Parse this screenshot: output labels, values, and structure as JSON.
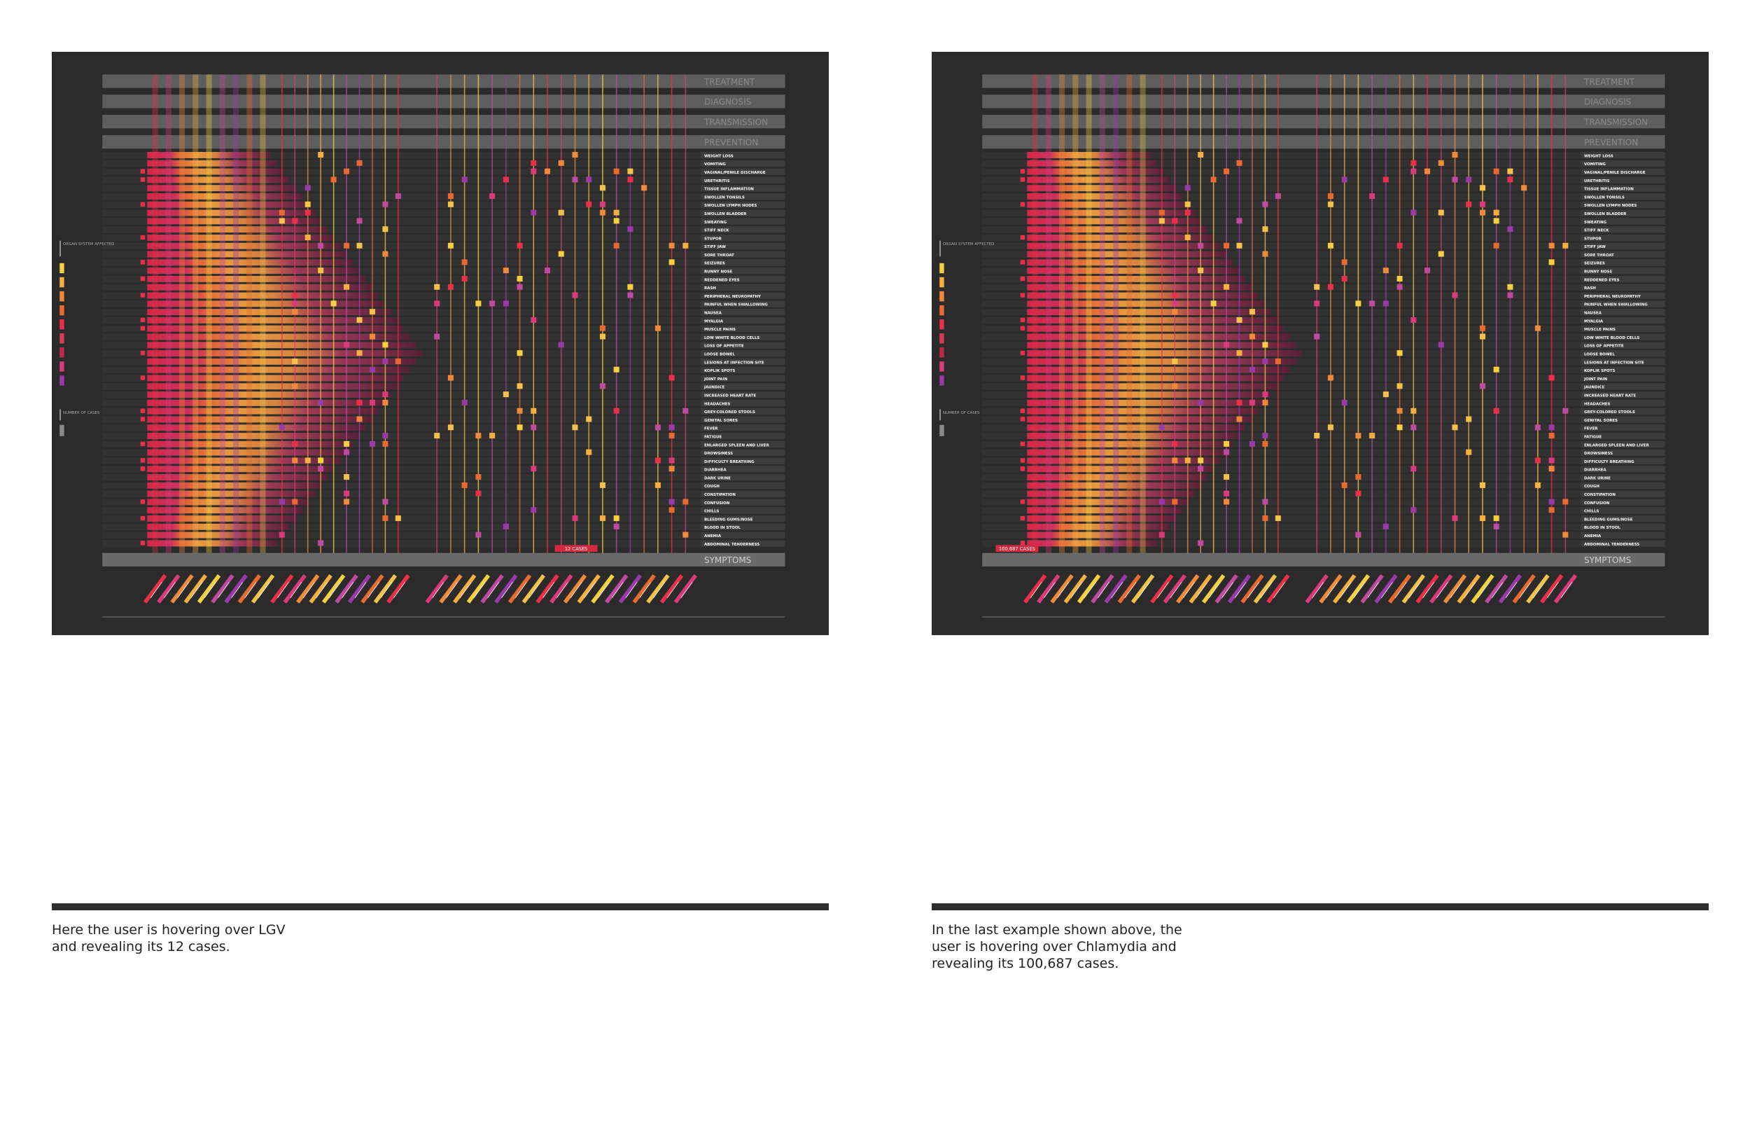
{
  "bands": [
    "TREATMENT",
    "DIAGNOSIS",
    "TRANSMISSION",
    "PREVENTION"
  ],
  "symptoms_header": "SYMPTOMS",
  "legend": {
    "organ": "ORGAN SYSTEM AFFECTED",
    "cases": "NUMBER OF CASES"
  },
  "symptoms": [
    "WEIGHT LOSS",
    "VOMITING",
    "VAGINAL/PENILE DISCHARGE",
    "URETHRITIS",
    "TISSUE INFLAMMATION",
    "SWOLLEN TONSILS",
    "SWOLLEN LYMPH NODES",
    "SWOLLEN BLADDER",
    "SWEATING",
    "STIFF NECK",
    "STUPOR",
    "STIFF JAW",
    "SORE THROAT",
    "SEIZURES",
    "RUNNY NOSE",
    "REDDENED EYES",
    "RASH",
    "PERIPHERAL NEUROPATHY",
    "PAINFUL WHEN SWALLOWING",
    "NAUSEA",
    "MYALGIA",
    "MUSCLE PAINS",
    "LOW WHITE BLOOD CELLS",
    "LOSS OF APPETITE",
    "LOOSE BOWEL",
    "LESIONS AT INFECTION SITE",
    "KOPLIK SPOTS",
    "JOINT PAIN",
    "JAUNDICE",
    "INCREASED HEART RATE",
    "HEADACHES",
    "GREY-COLORED STOOLS",
    "GENITAL SORES",
    "FEVER",
    "FATIGUE",
    "ENLARGED SPLEEN AND LIVER",
    "DROWSINESS",
    "DIFFICULTY BREATHING",
    "DIARRHEA",
    "DARK URINE",
    "COUGH",
    "CONSTIPATION",
    "CONFUSION",
    "CHILLS",
    "BLEEDING GUMS/NOSE",
    "BLOOD IN STOOL",
    "ANEMIA",
    "ABDOMINAL TENDERNESS"
  ],
  "panels": [
    {
      "hover_label": "12 CASES",
      "caption": [
        "Here the user is hovering over LGV",
        "and revealing its 12 cases."
      ]
    },
    {
      "hover_label": "100,687 CASES",
      "caption": [
        "In the last example shown above, the",
        "user is hovering over Chlamydia and",
        "revealing its 100,687 cases."
      ]
    }
  ]
}
